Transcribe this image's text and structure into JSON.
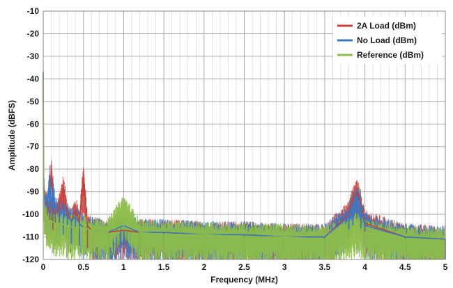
{
  "chart_data": {
    "type": "line",
    "xlabel": "Frequency (MHz)",
    "ylabel": "Amplitude (dBFS)",
    "xlim": [
      0,
      5
    ],
    "ylim": [
      -120,
      -10
    ],
    "x_ticks": [
      0,
      0.5,
      1,
      1.5,
      2,
      2.5,
      3,
      3.5,
      4,
      4.5,
      5
    ],
    "x_tick_labels": [
      "0",
      "0.5",
      "1",
      "1.5",
      "2",
      "2.5",
      "3",
      "3.5",
      "4",
      "4.5",
      "5"
    ],
    "y_ticks": [
      -10,
      -20,
      -30,
      -40,
      -50,
      -60,
      -70,
      -80,
      -90,
      -100,
      -110,
      -120
    ],
    "y_tick_labels": [
      "-10",
      "-20",
      "-30",
      "-40",
      "-50",
      "-60",
      "-70",
      "-80",
      "-90",
      "-100",
      "-110",
      "-120"
    ],
    "x_minor_step": 0.1,
    "grid": true,
    "legend_position": "top-right",
    "series": [
      {
        "name": "2A Load (dBm)",
        "color": "#c8403a",
        "x": [
          0,
          0.005,
          0.02,
          0.05,
          0.08,
          0.1,
          0.12,
          0.15,
          0.2,
          0.25,
          0.3,
          0.35,
          0.4,
          0.45,
          0.5,
          0.55,
          0.6,
          0.8,
          1.0,
          1.2,
          1.5,
          2.0,
          2.5,
          3.0,
          3.5,
          3.8,
          3.85,
          3.9,
          3.95,
          4.0,
          4.5,
          5.0
        ],
        "y": [
          -40,
          -90,
          -94,
          -96,
          -100,
          -78,
          -97,
          -100,
          -96,
          -88,
          -100,
          -103,
          -98,
          -103,
          -82,
          -105,
          -107,
          -108,
          -107,
          -108,
          -108,
          -109,
          -109,
          -110,
          -110,
          -100,
          -93,
          -90,
          -95,
          -104,
          -110,
          -111
        ]
      },
      {
        "name": "No Load (dBm)",
        "color": "#3b78c2",
        "x": [
          0,
          0.005,
          0.02,
          0.05,
          0.08,
          0.1,
          0.12,
          0.15,
          0.2,
          0.25,
          0.3,
          0.35,
          0.4,
          0.45,
          0.5,
          0.6,
          0.8,
          1.0,
          1.2,
          1.5,
          2.0,
          2.5,
          3.0,
          3.5,
          3.8,
          3.85,
          3.9,
          3.95,
          4.0,
          4.5,
          5.0
        ],
        "y": [
          -37,
          -85,
          -95,
          -97,
          -83,
          -98,
          -87,
          -98,
          -100,
          -99,
          -101,
          -103,
          -101,
          -104,
          -106,
          -107,
          -108,
          -105,
          -108,
          -108,
          -109,
          -109,
          -110,
          -110,
          -101,
          -95,
          -92,
          -97,
          -105,
          -110,
          -111
        ]
      },
      {
        "name": "Reference (dBm)",
        "color": "#8dbd4a",
        "x": [
          0,
          0.005,
          0.02,
          0.05,
          0.08,
          0.1,
          0.15,
          0.2,
          0.3,
          0.4,
          0.5,
          0.6,
          0.8,
          1.0,
          1.2,
          1.5,
          2.0,
          2.5,
          3.0,
          3.5,
          3.8,
          3.9,
          4.0,
          4.5,
          5.0
        ],
        "y": [
          -40,
          -93,
          -99,
          -101,
          -103,
          -103,
          -104,
          -104,
          -105,
          -106,
          -106,
          -107,
          -108,
          -97,
          -108,
          -109,
          -109,
          -110,
          -110,
          -111,
          -107,
          -105,
          -108,
          -111,
          -112
        ]
      }
    ]
  }
}
